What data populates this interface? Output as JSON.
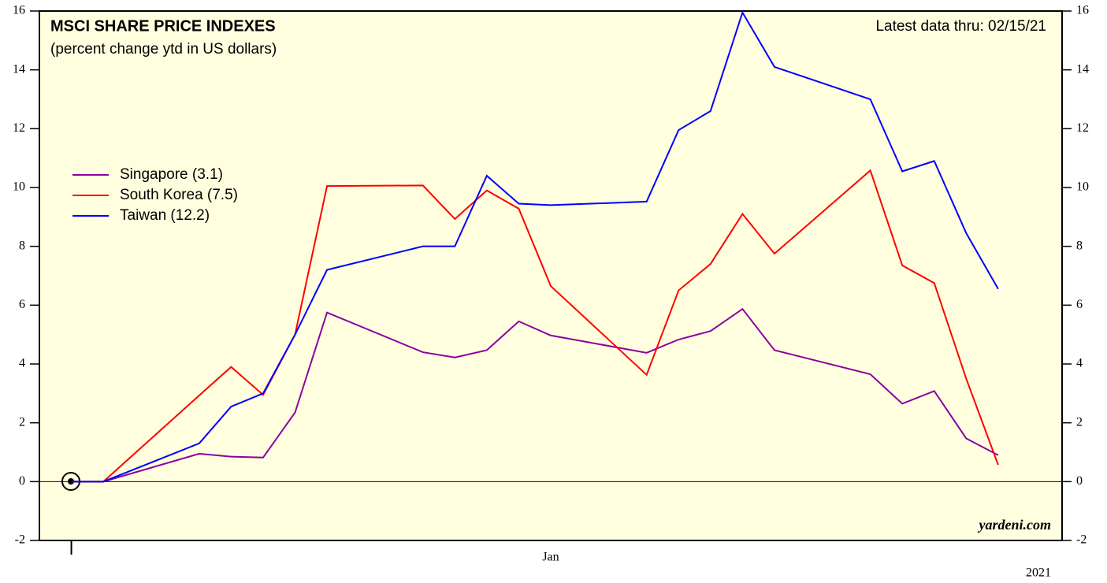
{
  "chart_data": {
    "type": "line",
    "title": "MSCI SHARE PRICE INDEXES",
    "subtitle": "(percent change ytd in US dollars)",
    "annotation": "Latest data thru: 02/15/21",
    "source": "yardeni.com",
    "year_label": "2021",
    "x": [
      0,
      1,
      4,
      5,
      6,
      7,
      8,
      11,
      12,
      13,
      14,
      15,
      18,
      19,
      20,
      21,
      22,
      25,
      26,
      27,
      28,
      29
    ],
    "xlim": [
      -1,
      31
    ],
    "xticks": [
      {
        "value": 15,
        "label": "Jan"
      }
    ],
    "xmajor_ticks": [
      0
    ],
    "ylim": [
      -2,
      16
    ],
    "yticks": [
      -2,
      0,
      2,
      4,
      6,
      8,
      10,
      12,
      14,
      16
    ],
    "legend": "left",
    "series": [
      {
        "name": "Singapore (3.1)",
        "color": "#8b00a0",
        "values": [
          0,
          0,
          0.95,
          0.85,
          0.82,
          2.35,
          5.75,
          4.4,
          4.22,
          4.47,
          5.45,
          4.97,
          4.38,
          4.83,
          5.12,
          5.87,
          4.47,
          3.65,
          2.65,
          3.08,
          1.47,
          0.9
        ]
      },
      {
        "name": "South Korea (7.5)",
        "color": "#ff0000",
        "values": [
          0,
          0,
          2.93,
          3.9,
          2.95,
          5.0,
          10.05,
          10.07,
          8.93,
          9.9,
          9.28,
          6.65,
          3.63,
          6.5,
          7.4,
          9.1,
          7.75,
          10.58,
          7.35,
          6.75,
          3.5,
          0.57
        ]
      },
      {
        "name": "Taiwan (12.2)",
        "color": "#0000ff",
        "values": [
          0,
          0,
          1.3,
          2.55,
          3.0,
          5.0,
          7.2,
          8.0,
          8.0,
          10.4,
          9.45,
          9.4,
          9.52,
          11.95,
          12.6,
          15.95,
          14.1,
          13.0,
          10.55,
          10.9,
          8.45,
          6.55
        ]
      }
    ]
  }
}
